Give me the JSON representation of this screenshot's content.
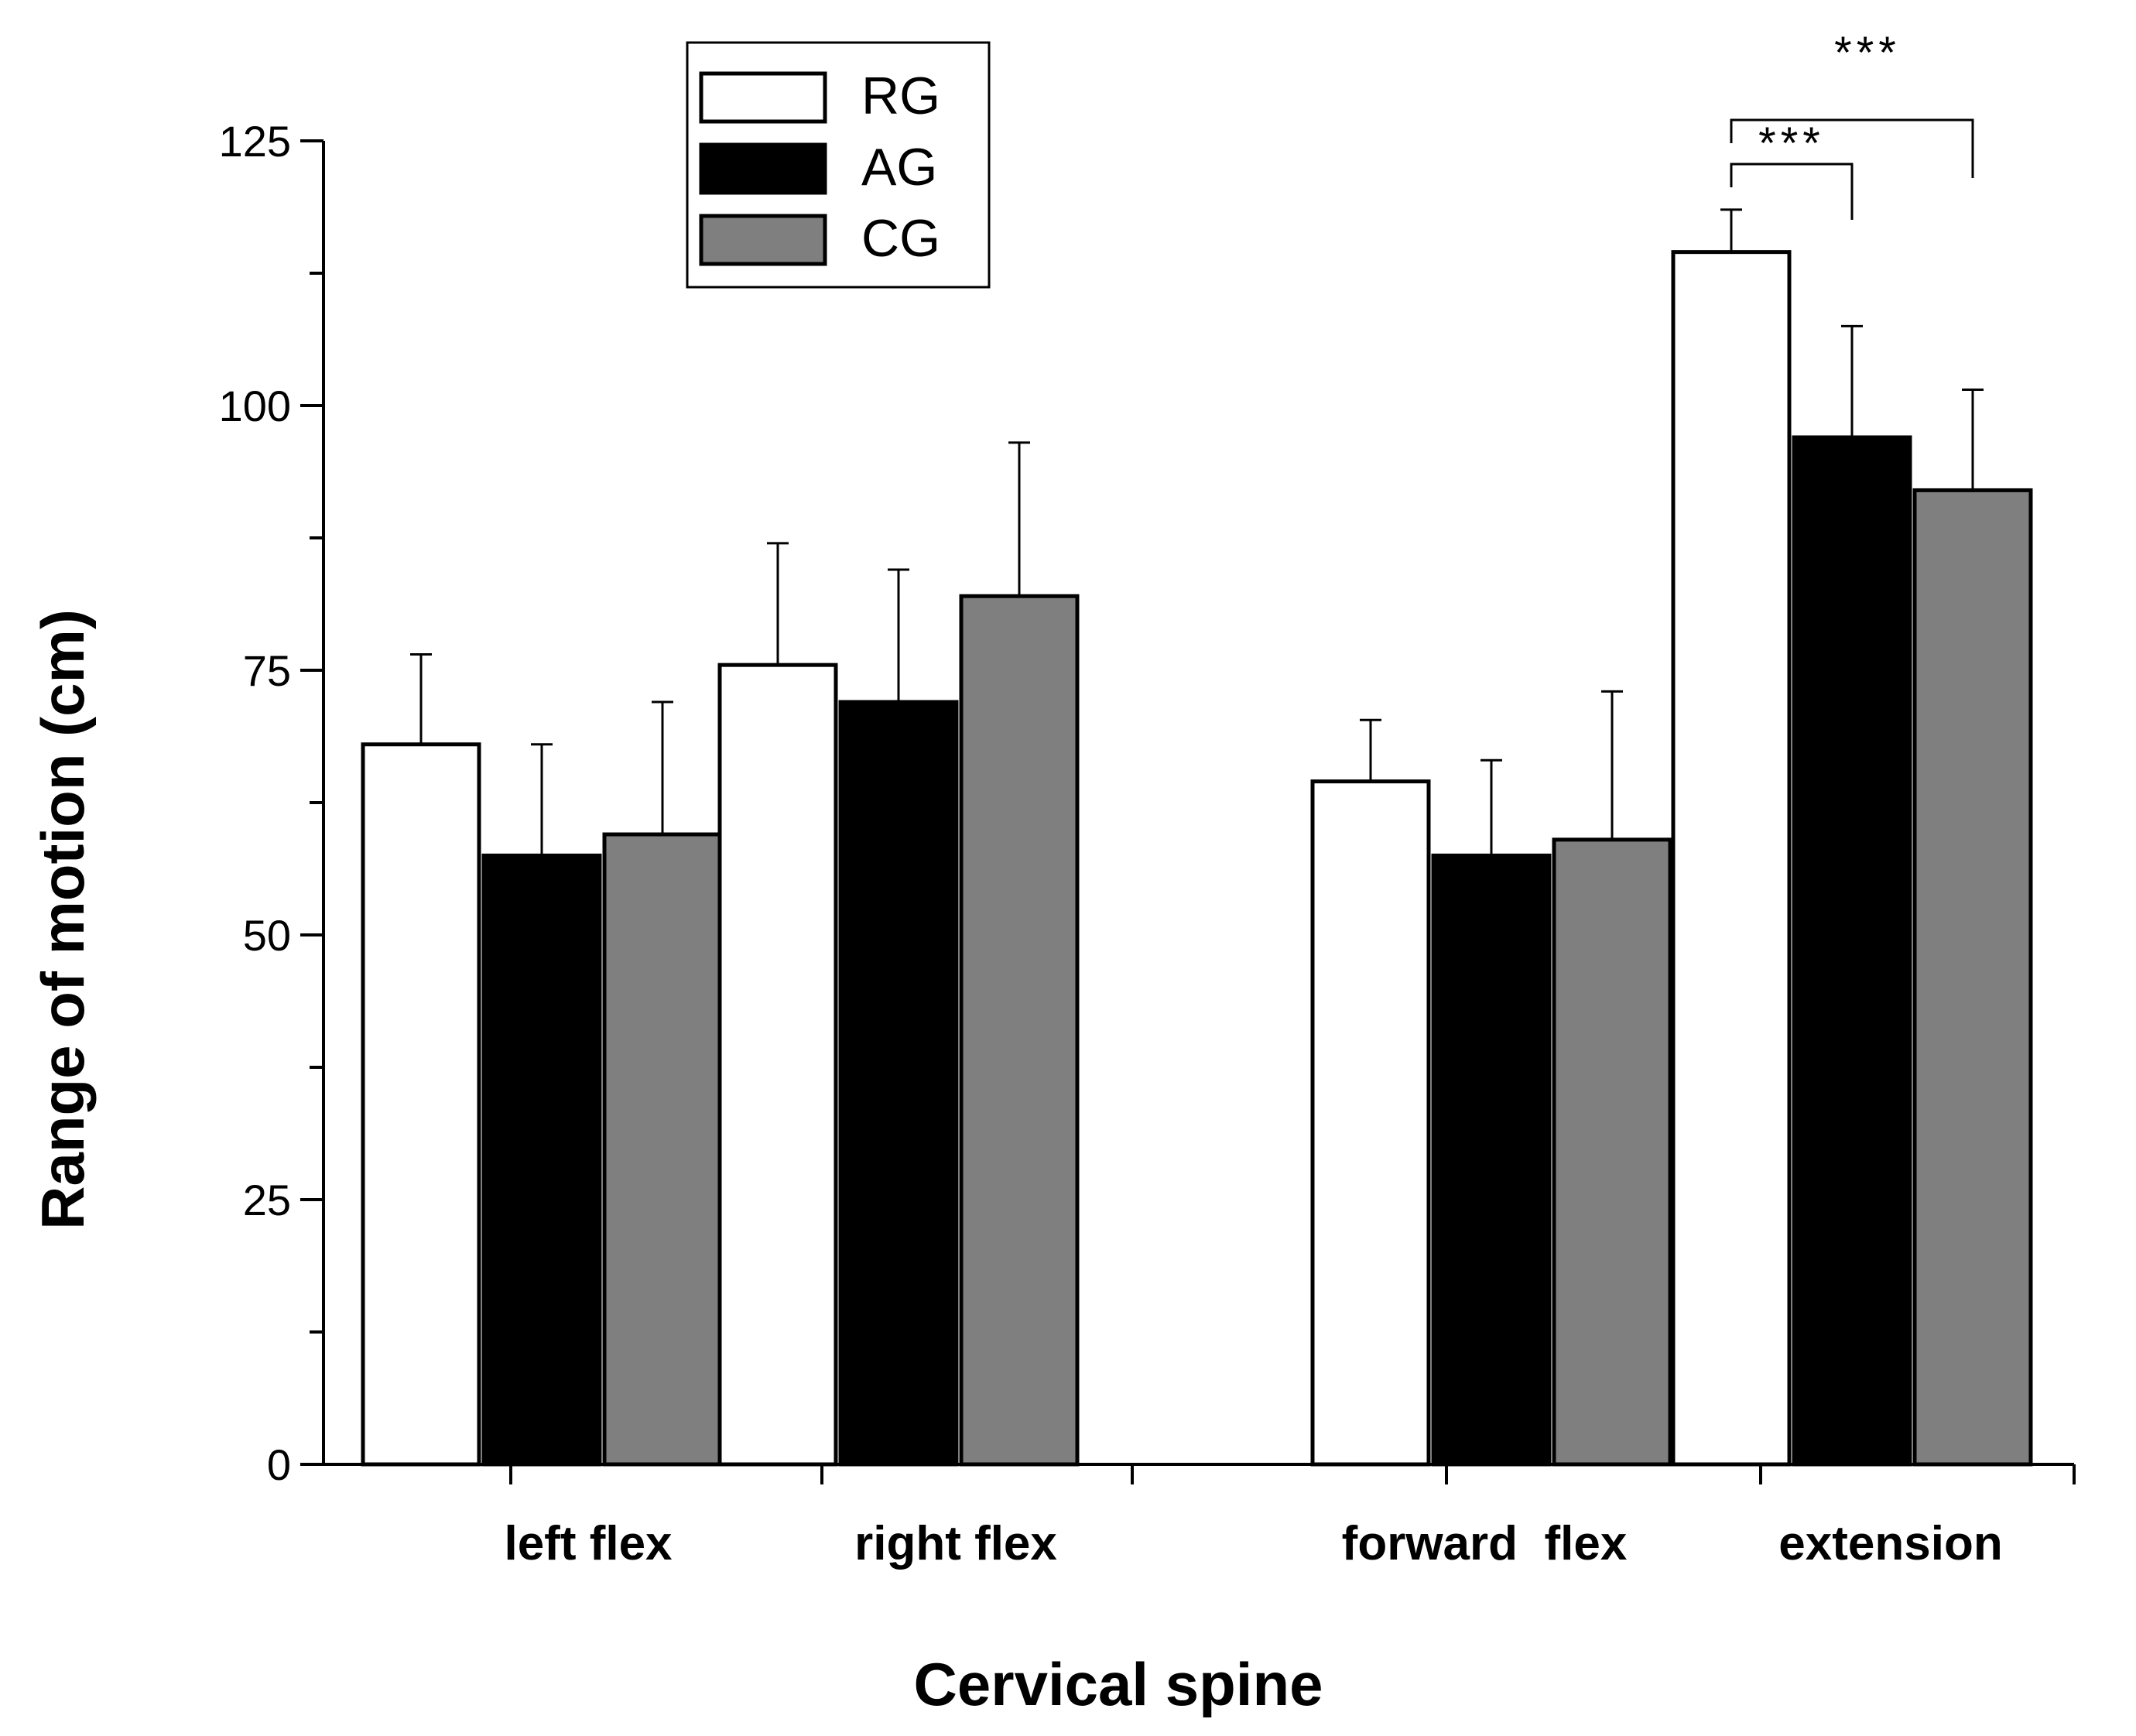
{
  "chart_data": {
    "type": "bar",
    "title": "",
    "xlabel": "Cervical spine",
    "ylabel": "Range of motion (cm)",
    "ylim": [
      0,
      125
    ],
    "yticks": [
      0,
      25,
      50,
      75,
      100,
      125
    ],
    "categories": [
      "left flex",
      "right flex",
      "forward  flex",
      "extension"
    ],
    "category_panels": [
      [
        0,
        1
      ],
      [
        2,
        3
      ]
    ],
    "series": [
      {
        "name": "RG",
        "color": "#ffffff",
        "values": [
          68,
          75.5,
          64.5,
          114.5
        ],
        "errors": [
          8.5,
          11.5,
          5.8,
          4
        ]
      },
      {
        "name": "AG",
        "color": "#000000",
        "values": [
          57.5,
          72,
          57.5,
          97
        ],
        "errors": [
          10.5,
          12.5,
          9,
          10.5
        ]
      },
      {
        "name": "CG",
        "color": "#7f7f7f",
        "values": [
          59.5,
          82,
          59,
          92
        ],
        "errors": [
          12.5,
          14.5,
          14,
          9.5
        ]
      }
    ],
    "legend": {
      "position": "top-left",
      "entries": [
        "RG",
        "AG",
        "CG"
      ]
    },
    "annotations": [
      {
        "category": "extension",
        "from_series": "RG",
        "to_series": "AG",
        "label": "***"
      },
      {
        "category": "extension",
        "from_series": "RG",
        "to_series": "CG",
        "label": "***"
      }
    ],
    "grid": false
  }
}
